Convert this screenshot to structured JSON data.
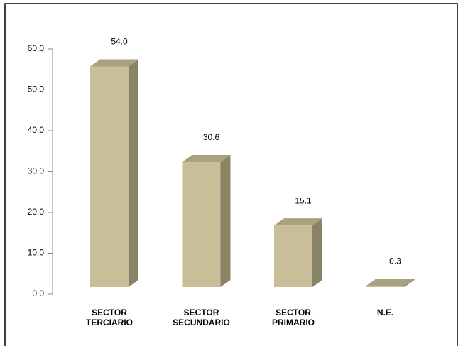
{
  "chart_data": {
    "type": "bar",
    "categories": [
      "SECTOR TERCIARIO",
      "SECTOR SECUNDARIO",
      "SECTOR PRIMARIO",
      "N.E."
    ],
    "values": [
      54,
      30.6,
      15.1,
      0.3
    ],
    "value_labels": [
      "54.0",
      "30.6",
      "15.1",
      "0.3"
    ],
    "color": "#c8bf98",
    "ylim": [
      0,
      60
    ],
    "yticks": [
      {
        "value": 0,
        "label": "0.0"
      },
      {
        "value": 10,
        "label": "10.0"
      },
      {
        "value": 20,
        "label": "20.0"
      },
      {
        "value": 30,
        "label": "30.0"
      },
      {
        "value": 40,
        "label": "40.0"
      },
      {
        "value": 50,
        "label": "50.0"
      },
      {
        "value": 60,
        "label": "60.0"
      }
    ],
    "grid": false
  }
}
